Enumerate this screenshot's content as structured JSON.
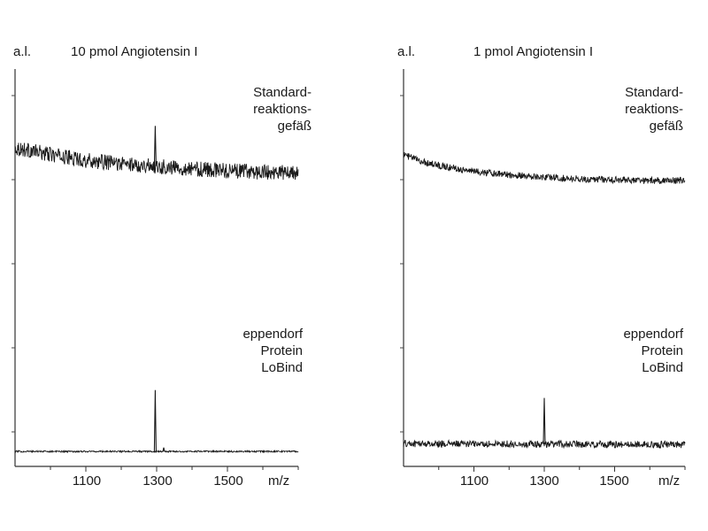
{
  "chart_data": [
    {
      "type": "line",
      "title": "10 pmol Angiotensin I",
      "ylabel": "a.l.",
      "xlabel": "m/z",
      "xlim": [
        900,
        1700
      ],
      "x_ticks": [
        1100,
        1300,
        1500
      ],
      "grid": false,
      "series": [
        {
          "name": "Standard-\nreaktions-\ngefäß",
          "label_lines": [
            "Standard-",
            "reaktions-",
            "gefäß"
          ],
          "baseline": [
            [
              900,
              0.7
            ],
            [
              1000,
              0.66
            ],
            [
              1100,
              0.625
            ],
            [
              1200,
              0.605
            ],
            [
              1300,
              0.59
            ],
            [
              1400,
              0.575
            ],
            [
              1500,
              0.565
            ],
            [
              1600,
              0.555
            ],
            [
              1700,
              0.55
            ]
          ],
          "noise": 0.045,
          "peaks": [
            {
              "x": 1296,
              "height": 0.83
            }
          ]
        },
        {
          "name": "eppendorf\nProtein\nLoBind",
          "label_lines": [
            "eppendorf",
            "Protein",
            "LoBind"
          ],
          "baseline": [
            [
              900,
              0.045
            ],
            [
              1700,
              0.045
            ]
          ],
          "noise": 0.004,
          "peaks": [
            {
              "x": 1296,
              "height": 0.36
            },
            {
              "x": 1320,
              "height": 0.065
            },
            {
              "x": 1460,
              "height": 0.05
            }
          ]
        }
      ]
    },
    {
      "type": "line",
      "title": "1 pmol Angiotensin I",
      "ylabel": "a.l.",
      "xlabel": "m/z",
      "xlim": [
        900,
        1700
      ],
      "x_ticks": [
        1100,
        1300,
        1500
      ],
      "grid": false,
      "series": [
        {
          "name": "Standard-\nreaktions-\ngefäß",
          "label_lines": [
            "Standard-",
            "reaktions-",
            "gefäß"
          ],
          "baseline": [
            [
              900,
              0.66
            ],
            [
              950,
              0.62
            ],
            [
              1000,
              0.595
            ],
            [
              1100,
              0.56
            ],
            [
              1200,
              0.54
            ],
            [
              1300,
              0.525
            ],
            [
              1400,
              0.515
            ],
            [
              1500,
              0.51
            ],
            [
              1600,
              0.505
            ],
            [
              1700,
              0.505
            ]
          ],
          "noise": 0.02,
          "peaks": []
        },
        {
          "name": "eppendorf\nProtein\nLoBind",
          "label_lines": [
            "eppendorf",
            "Protein",
            "LoBind"
          ],
          "baseline": [
            [
              900,
              0.085
            ],
            [
              1700,
              0.08
            ]
          ],
          "noise": 0.018,
          "peaks": [
            {
              "x": 1300,
              "height": 0.32
            }
          ]
        }
      ]
    }
  ]
}
